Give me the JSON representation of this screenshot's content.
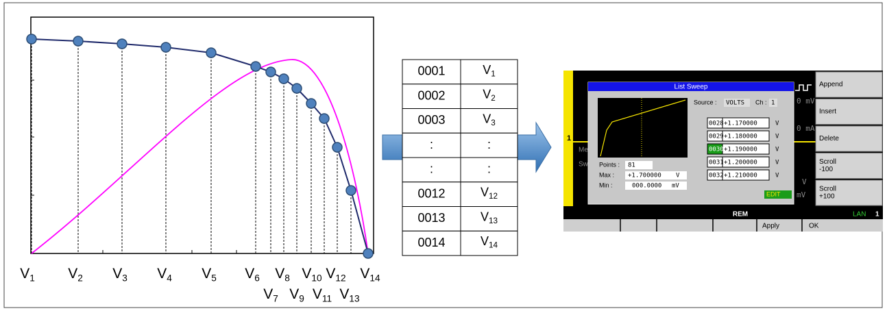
{
  "curve_diagram": {
    "labels": [
      {
        "main": "V",
        "sub": "1"
      },
      {
        "main": "V",
        "sub": "2"
      },
      {
        "main": "V",
        "sub": "3"
      },
      {
        "main": "V",
        "sub": "4"
      },
      {
        "main": "V",
        "sub": "5"
      },
      {
        "main": "V",
        "sub": "6"
      },
      {
        "main": "V",
        "sub": "7"
      },
      {
        "main": "V",
        "sub": "8"
      },
      {
        "main": "V",
        "sub": "9"
      },
      {
        "main": "V",
        "sub": "10"
      },
      {
        "main": "V",
        "sub": "11"
      },
      {
        "main": "V",
        "sub": "12"
      },
      {
        "main": "V",
        "sub": "13"
      },
      {
        "main": "V",
        "sub": "14"
      }
    ]
  },
  "sweep_table": {
    "rows": [
      [
        "0001",
        {
          "main": "V",
          "sub": "1"
        }
      ],
      [
        "0002",
        {
          "main": "V",
          "sub": "2"
        }
      ],
      [
        "0003",
        {
          "main": "V",
          "sub": "3"
        }
      ],
      [
        ":",
        ":"
      ],
      [
        ":",
        ":"
      ],
      [
        "0012",
        {
          "main": "V",
          "sub": "12"
        }
      ],
      [
        "0013",
        {
          "main": "V",
          "sub": "13"
        }
      ],
      [
        "0014",
        {
          "main": "V",
          "sub": "14"
        }
      ]
    ]
  },
  "instrument": {
    "dialog_title": "List Sweep",
    "source_label": "Source :",
    "source_value": "VOLTS",
    "ch_label": "Ch :",
    "ch_value": "1",
    "points_label": "Points :",
    "points_value": "81",
    "max_label": "Max :",
    "max_value": "+1.700000",
    "max_unit": "V",
    "min_label": "Min :",
    "min_value": "000.0000",
    "min_unit": "mV",
    "list": [
      [
        "0028",
        "+1.170000",
        "V"
      ],
      [
        "0029",
        "+1.180000",
        "V"
      ],
      [
        "0030",
        "+1.190000",
        "V"
      ],
      [
        "0031",
        "+1.200000",
        "V"
      ],
      [
        "0032",
        "+1.210000",
        "V"
      ]
    ],
    "edit": "EDIT",
    "softkeys": [
      [
        "Append"
      ],
      [
        "Insert"
      ],
      [
        "Delete"
      ],
      [
        "Scroll",
        "-100"
      ],
      [
        "Scroll",
        "+100"
      ]
    ],
    "status": "REM",
    "lan": "LAN",
    "lan_number": "1",
    "bottom_keys": [
      "Apply",
      "OK"
    ],
    "background": {
      "channel": "1",
      "fragment_1": "Me",
      "fragment_2": "Sw",
      "reading_1": "0 mV",
      "reading_2": "0 mA",
      "reading_3": "V",
      "reading_4": "mV"
    }
  }
}
